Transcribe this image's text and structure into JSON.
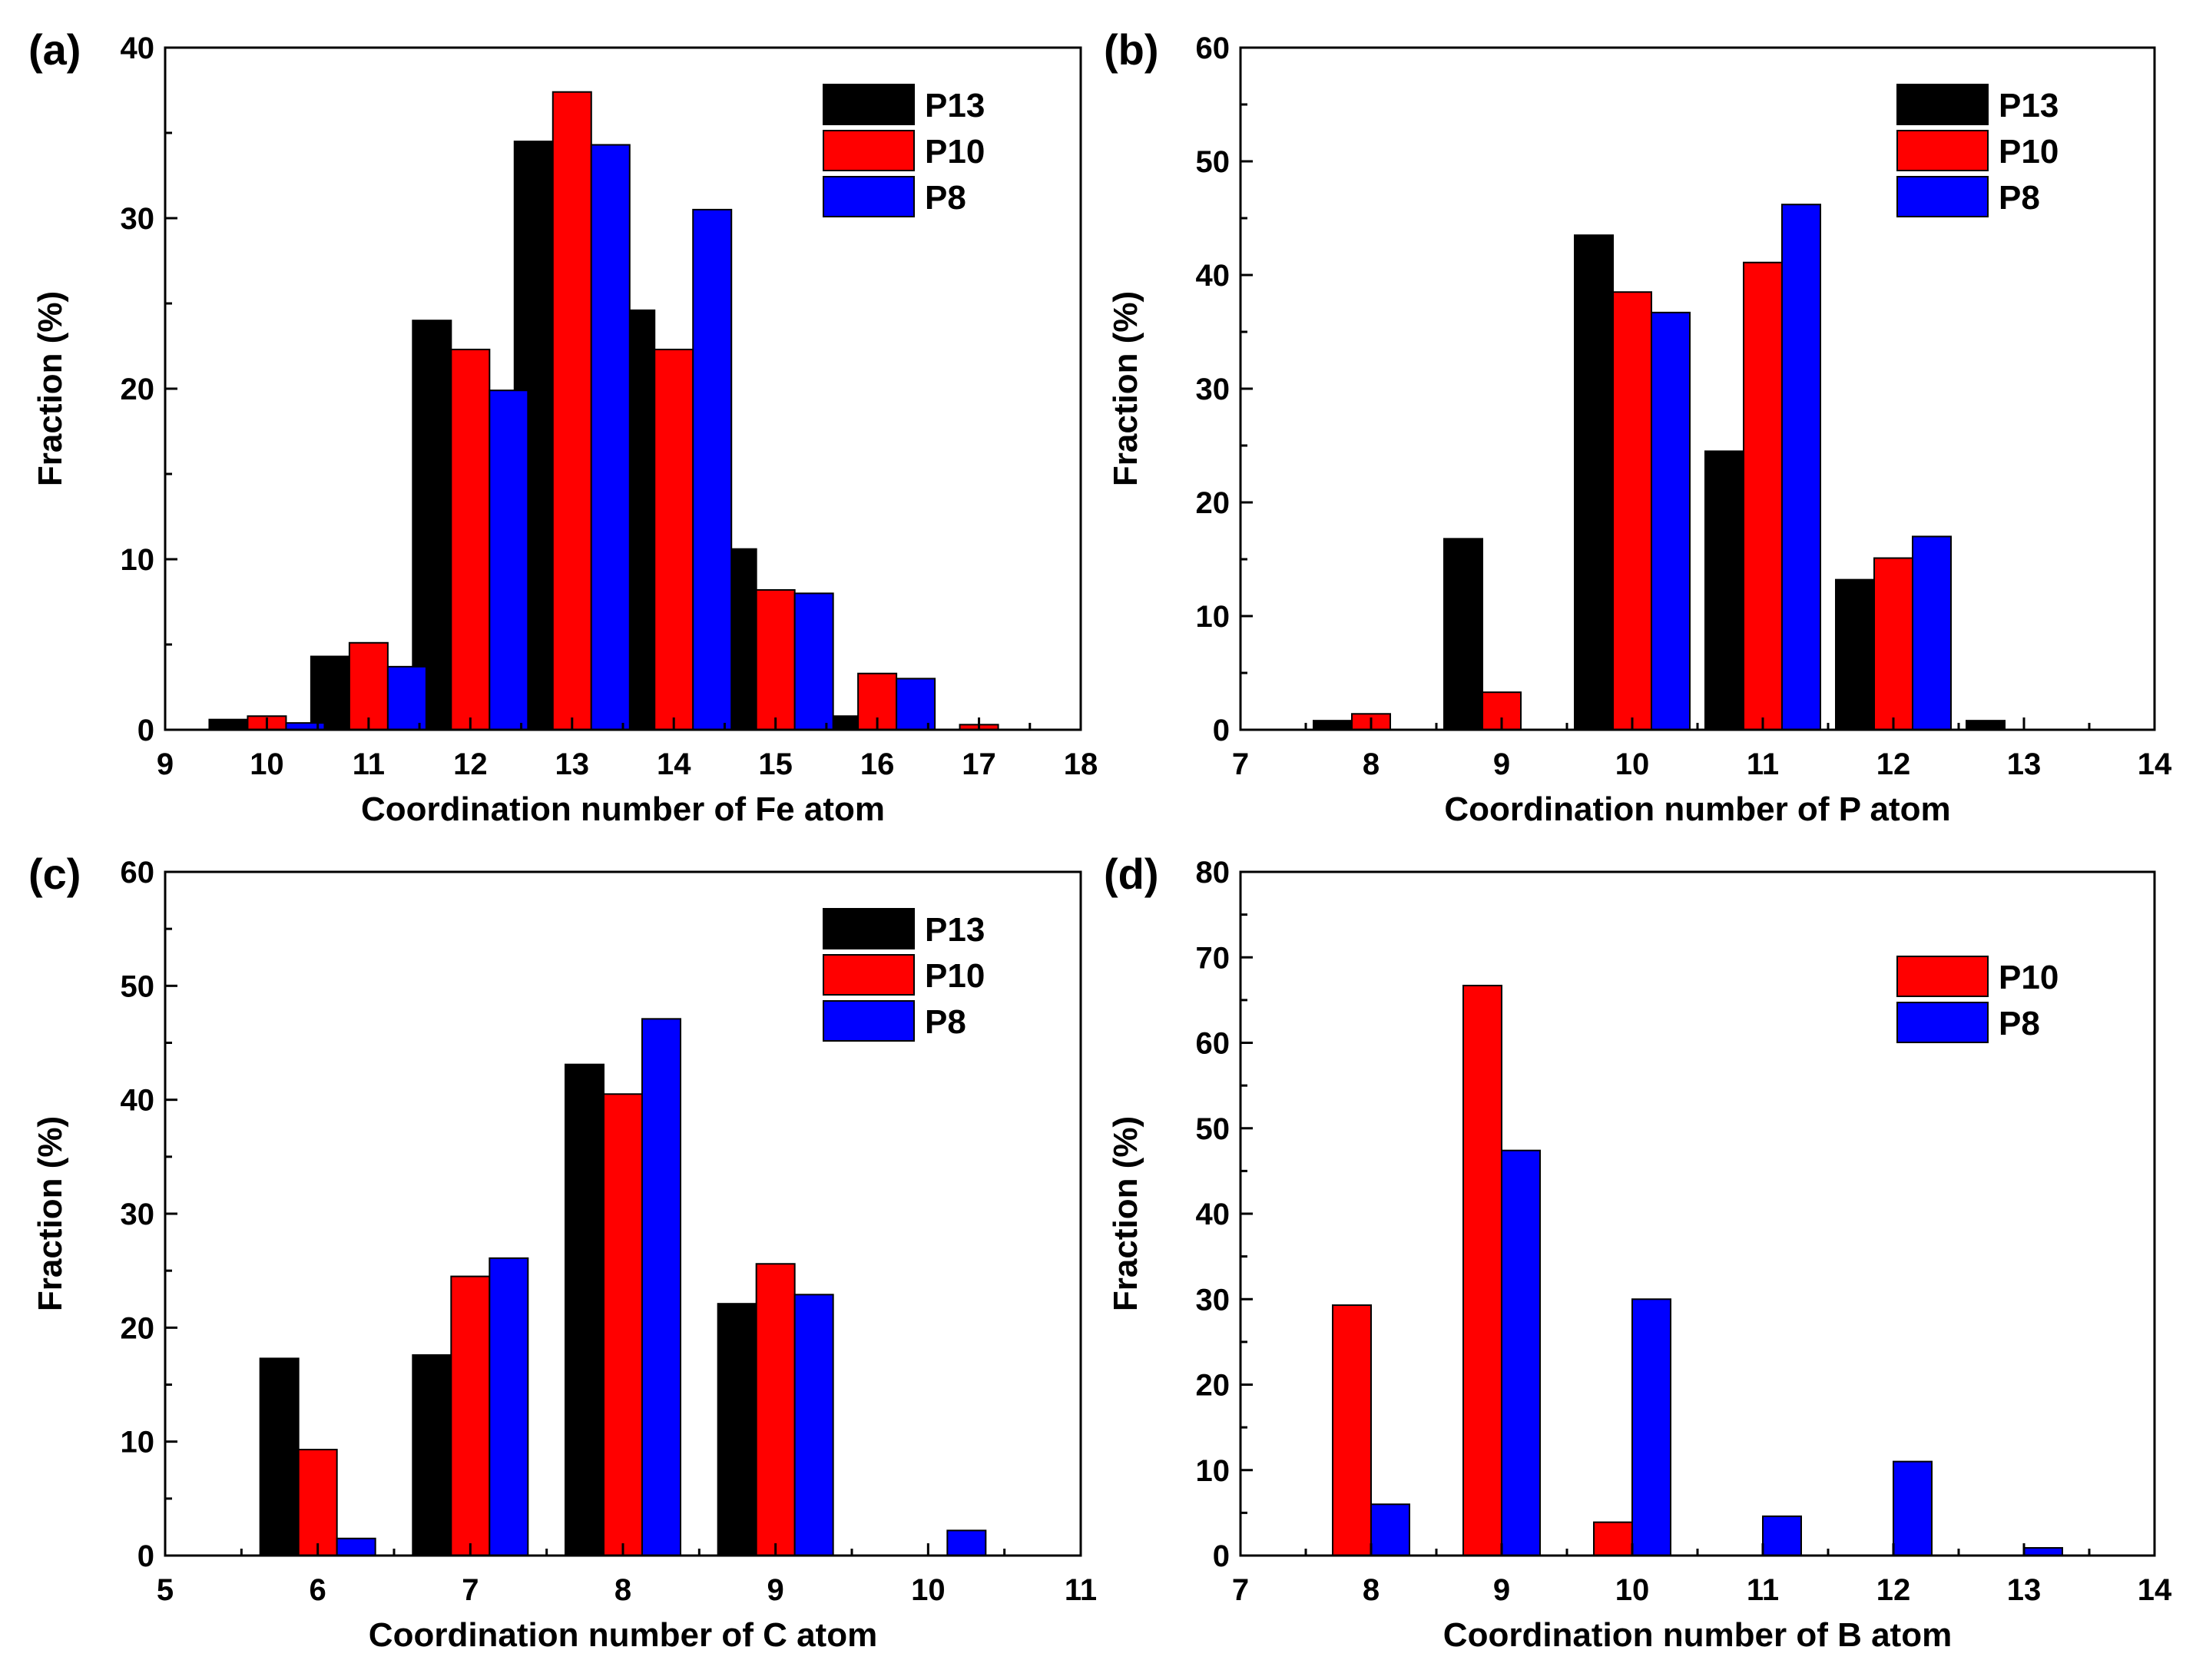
{
  "colors": {
    "P13": "#000000",
    "P10": "#ff0000",
    "P8": "#0000ff"
  },
  "chart_data": [
    {
      "panel": "(a)",
      "type": "bar",
      "xlabel": "Coordination number of Fe atom",
      "ylabel": "Fraction (%)",
      "xlim": [
        9,
        18
      ],
      "ylim": [
        0,
        40
      ],
      "xticks": [
        9,
        10,
        11,
        12,
        13,
        14,
        15,
        16,
        17,
        18
      ],
      "yticks": [
        0,
        10,
        20,
        30,
        40
      ],
      "categories": [
        10,
        11,
        12,
        13,
        14,
        15,
        16,
        17
      ],
      "legend": "top-right",
      "series": [
        {
          "name": "P13",
          "values": [
            0.6,
            4.3,
            24.0,
            34.5,
            24.6,
            10.6,
            0.8,
            0
          ]
        },
        {
          "name": "P10",
          "values": [
            0.8,
            5.1,
            22.3,
            37.4,
            22.3,
            8.2,
            3.3,
            0.3
          ]
        },
        {
          "name": "P8",
          "values": [
            0.4,
            3.7,
            19.9,
            34.3,
            30.5,
            8.0,
            3.0,
            0
          ]
        }
      ]
    },
    {
      "panel": "(b)",
      "type": "bar",
      "xlabel": "Coordination number of P atom",
      "ylabel": "Fraction (%)",
      "xlim": [
        7,
        14
      ],
      "ylim": [
        0,
        60
      ],
      "xticks": [
        7,
        8,
        9,
        10,
        11,
        12,
        13,
        14
      ],
      "yticks": [
        0,
        10,
        20,
        30,
        40,
        50,
        60
      ],
      "categories": [
        8,
        9,
        10,
        11,
        12,
        13
      ],
      "legend": "top-right",
      "series": [
        {
          "name": "P13",
          "values": [
            0.8,
            16.8,
            43.5,
            24.5,
            13.2,
            0.8
          ]
        },
        {
          "name": "P10",
          "values": [
            1.4,
            3.3,
            38.5,
            41.1,
            15.1,
            0
          ]
        },
        {
          "name": "P8",
          "values": [
            0,
            0,
            36.7,
            46.2,
            17.0,
            0
          ]
        }
      ]
    },
    {
      "panel": "(c)",
      "type": "bar",
      "xlabel": "Coordination number of C atom",
      "ylabel": "Fraction (%)",
      "xlim": [
        5,
        11
      ],
      "ylim": [
        0,
        60
      ],
      "xticks": [
        5,
        6,
        7,
        8,
        9,
        10,
        11
      ],
      "yticks": [
        0,
        10,
        20,
        30,
        40,
        50,
        60
      ],
      "categories": [
        6,
        7,
        8,
        9,
        10
      ],
      "legend": "top-right",
      "series": [
        {
          "name": "P13",
          "values": [
            17.3,
            17.6,
            43.1,
            22.1,
            0
          ]
        },
        {
          "name": "P10",
          "values": [
            9.3,
            24.5,
            40.5,
            25.6,
            0
          ]
        },
        {
          "name": "P8",
          "values": [
            1.5,
            26.1,
            47.1,
            22.9,
            2.2
          ]
        }
      ]
    },
    {
      "panel": "(d)",
      "type": "bar",
      "xlabel": "Coordination number of B atom",
      "ylabel": "Fraction (%)",
      "xlim": [
        7,
        14
      ],
      "ylim": [
        0,
        80
      ],
      "xticks": [
        7,
        8,
        9,
        10,
        11,
        12,
        13,
        14
      ],
      "yticks": [
        0,
        10,
        20,
        30,
        40,
        50,
        60,
        70,
        80
      ],
      "categories": [
        8,
        9,
        10,
        11,
        12,
        13
      ],
      "legend": "top-right",
      "series": [
        {
          "name": "P10",
          "values": [
            29.3,
            66.7,
            3.9,
            0,
            0,
            0
          ]
        },
        {
          "name": "P8",
          "values": [
            6.0,
            47.4,
            30.0,
            4.6,
            11.0,
            0.9
          ]
        }
      ]
    }
  ]
}
